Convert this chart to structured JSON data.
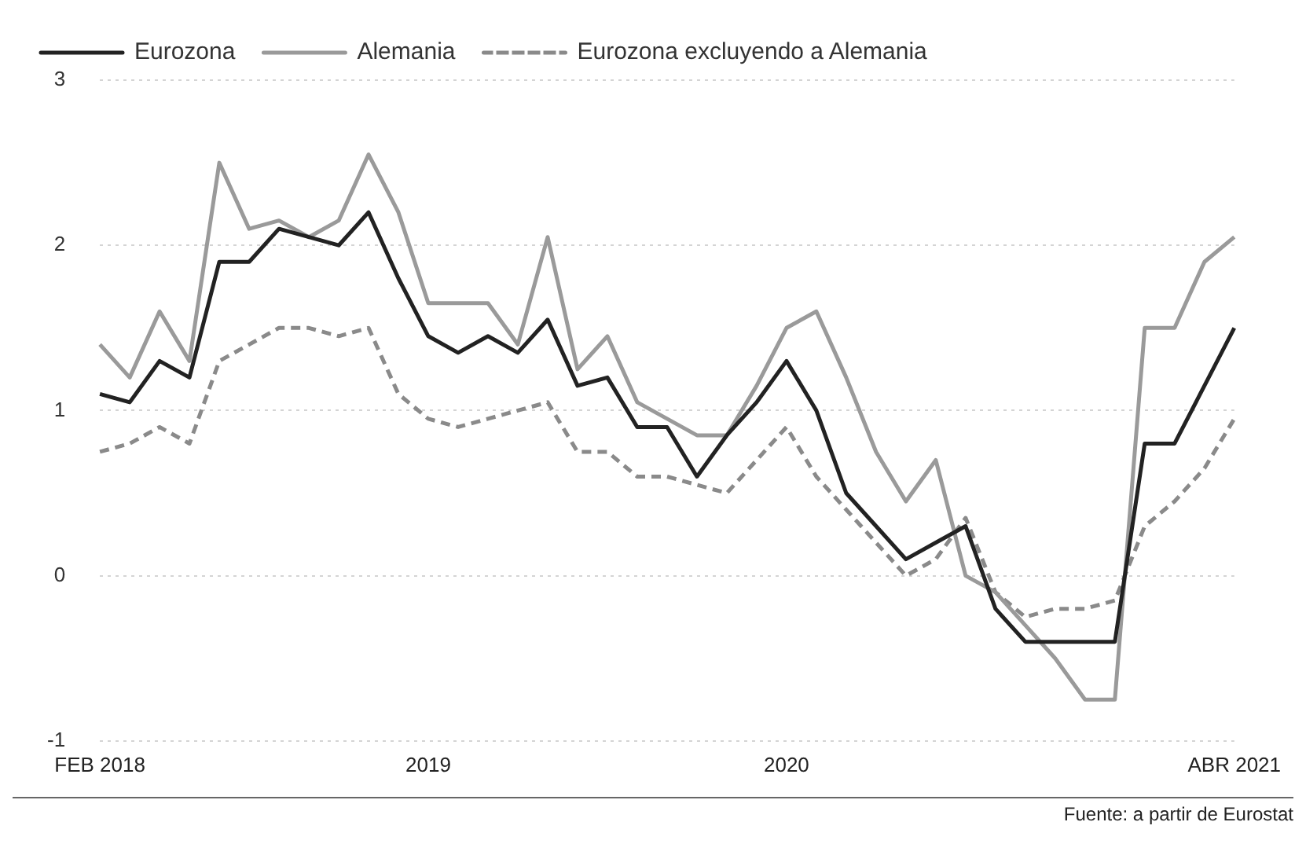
{
  "chart_data": {
    "type": "line",
    "categories": [
      "FEB 2018",
      null,
      null,
      null,
      null,
      null,
      null,
      null,
      null,
      null,
      null,
      "2019",
      null,
      null,
      null,
      null,
      null,
      null,
      null,
      null,
      null,
      null,
      null,
      "2020",
      null,
      null,
      null,
      null,
      null,
      null,
      null,
      null,
      null,
      null,
      null,
      null,
      null,
      null,
      "ABR 2021"
    ],
    "series": [
      {
        "name": "Eurozona",
        "color": "#222222",
        "line_style": "solid",
        "values": [
          1.1,
          1.05,
          1.3,
          1.2,
          1.9,
          1.9,
          2.1,
          2.05,
          2.0,
          2.2,
          1.8,
          1.45,
          1.35,
          1.45,
          1.35,
          1.55,
          1.15,
          1.2,
          0.9,
          0.9,
          0.6,
          0.85,
          1.05,
          1.3,
          1.0,
          0.5,
          0.3,
          0.1,
          0.2,
          0.3,
          -0.2,
          -0.4,
          -0.4,
          -0.4,
          -0.4,
          0.8,
          0.8,
          1.15,
          1.5
        ]
      },
      {
        "name": "Alemania",
        "color": "#9a9a9a",
        "line_style": "solid",
        "values": [
          1.4,
          1.2,
          1.6,
          1.3,
          2.5,
          2.1,
          2.15,
          2.05,
          2.15,
          2.55,
          2.2,
          1.65,
          1.65,
          1.65,
          1.4,
          2.05,
          1.25,
          1.45,
          1.05,
          0.95,
          0.85,
          0.85,
          1.15,
          1.5,
          1.6,
          1.2,
          0.75,
          0.45,
          0.7,
          0.0,
          -0.1,
          -0.3,
          -0.5,
          -0.75,
          -0.75,
          1.5,
          1.5,
          1.9,
          2.05
        ]
      },
      {
        "name": "Eurozona excluyendo a Alemania",
        "color": "#8a8a8a",
        "line_style": "dashed",
        "values": [
          0.75,
          0.8,
          0.9,
          0.8,
          1.3,
          1.4,
          1.5,
          1.5,
          1.45,
          1.5,
          1.1,
          0.95,
          0.9,
          0.95,
          1.0,
          1.05,
          0.75,
          0.75,
          0.6,
          0.6,
          0.55,
          0.5,
          0.7,
          0.9,
          0.6,
          0.4,
          0.2,
          0.0,
          0.1,
          0.35,
          -0.1,
          -0.25,
          -0.2,
          -0.2,
          -0.15,
          0.3,
          0.45,
          0.65,
          0.95
        ]
      }
    ],
    "ylim": [
      -1,
      3
    ],
    "yticks": [
      -1,
      0,
      1,
      2,
      3
    ],
    "grid": "y",
    "legend": "top left",
    "marker": "none",
    "annotations": [
      "Fuente: a partir de Eurostat"
    ]
  }
}
